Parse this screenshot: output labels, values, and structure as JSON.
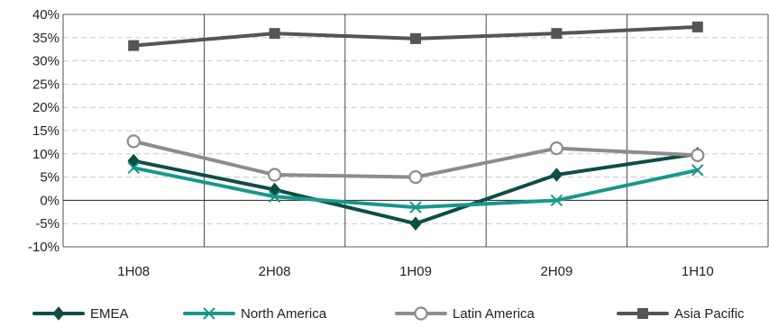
{
  "chart_data": {
    "type": "line",
    "title": "",
    "xlabel": "",
    "ylabel": "",
    "categories": [
      "1H08",
      "2H08",
      "1H09",
      "2H09",
      "1H10"
    ],
    "y_ticks": [
      "40%",
      "35%",
      "30%",
      "25%",
      "20%",
      "15%",
      "10%",
      "5%",
      "0%",
      "-5%",
      "-10%"
    ],
    "y_tick_values": [
      40,
      35,
      30,
      25,
      20,
      15,
      10,
      5,
      0,
      -5,
      -10
    ],
    "ylim": [
      -10,
      40
    ],
    "y_unit": "%",
    "grid": {
      "horizontal": "dashed",
      "vertical": "solid"
    },
    "legend_position": "bottom",
    "series": [
      {
        "name": "EMEA",
        "values": [
          8.5,
          2.3,
          -5.0,
          5.5,
          10.0
        ],
        "color": "#0e4d45",
        "marker": "diamond"
      },
      {
        "name": "North America",
        "values": [
          7.0,
          0.8,
          -1.5,
          0.0,
          6.5
        ],
        "color": "#17988a",
        "marker": "x"
      },
      {
        "name": "Latin America",
        "values": [
          12.7,
          5.5,
          5.0,
          11.2,
          9.7
        ],
        "color": "#8c8c8c",
        "marker": "circle-open"
      },
      {
        "name": "Asia Pacific",
        "values": [
          33.3,
          35.9,
          34.8,
          35.9,
          37.3
        ],
        "color": "#555555",
        "marker": "square"
      }
    ]
  }
}
